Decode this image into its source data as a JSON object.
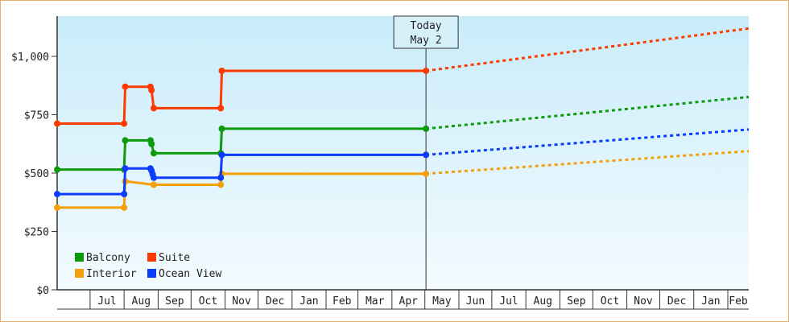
{
  "chart_data": {
    "type": "line",
    "title": "",
    "xlabel": "",
    "ylabel": "",
    "y_ticks": [
      "$0",
      "$250",
      "$500",
      "$750",
      "$1,000"
    ],
    "ylim": [
      0,
      1250
    ],
    "x_tick_labels": [
      "Jul",
      "Aug",
      "Sep",
      "Oct",
      "Nov",
      "Dec",
      "Jan",
      "Feb",
      "Mar",
      "Apr",
      "May",
      "Jun",
      "Jul",
      "Aug",
      "Sep",
      "Oct",
      "Nov",
      "Dec",
      "Jan",
      "Feb"
    ],
    "grid": false,
    "legend_position": "bottom-left",
    "today_marker": {
      "line1": "Today",
      "line2": "May 2"
    },
    "series": [
      {
        "name": "Balcony",
        "color": "#0d9a0d",
        "points": [
          [
            "2023-06-01",
            515
          ],
          [
            "2023-08-01",
            515
          ],
          [
            "2023-08-02",
            640
          ],
          [
            "2023-08-25",
            640
          ],
          [
            "2023-08-26",
            625
          ],
          [
            "2023-08-28",
            585
          ],
          [
            "2023-10-28",
            585
          ],
          [
            "2023-10-29",
            690
          ],
          [
            "2024-05-02",
            690
          ]
        ],
        "forecast": [
          [
            "2024-05-02",
            690
          ],
          [
            "2025-03-01",
            830
          ]
        ]
      },
      {
        "name": "Suite",
        "color": "#ff3a00",
        "points": [
          [
            "2023-06-01",
            712
          ],
          [
            "2023-08-01",
            712
          ],
          [
            "2023-08-02",
            870
          ],
          [
            "2023-08-25",
            870
          ],
          [
            "2023-08-26",
            855
          ],
          [
            "2023-08-28",
            778
          ],
          [
            "2023-10-28",
            778
          ],
          [
            "2023-10-29",
            938
          ],
          [
            "2024-05-02",
            938
          ]
        ],
        "forecast": [
          [
            "2024-05-02",
            938
          ],
          [
            "2025-03-01",
            1125
          ]
        ]
      },
      {
        "name": "Interior",
        "color": "#f5a00a",
        "points": [
          [
            "2023-06-01",
            352
          ],
          [
            "2023-08-01",
            352
          ],
          [
            "2023-08-02",
            465
          ],
          [
            "2023-08-28",
            450
          ],
          [
            "2023-10-28",
            450
          ],
          [
            "2023-10-29",
            497
          ],
          [
            "2024-05-02",
            497
          ]
        ],
        "forecast": [
          [
            "2024-05-02",
            497
          ],
          [
            "2025-03-01",
            597
          ]
        ]
      },
      {
        "name": "Ocean View",
        "color": "#0a3dff",
        "points": [
          [
            "2023-06-01",
            410
          ],
          [
            "2023-08-01",
            410
          ],
          [
            "2023-08-02",
            520
          ],
          [
            "2023-08-25",
            520
          ],
          [
            "2023-08-26",
            510
          ],
          [
            "2023-08-27",
            495
          ],
          [
            "2023-08-28",
            480
          ],
          [
            "2023-10-28",
            480
          ],
          [
            "2023-10-29",
            578
          ],
          [
            "2024-05-02",
            578
          ]
        ],
        "forecast": [
          [
            "2024-05-02",
            578
          ],
          [
            "2025-03-01",
            690
          ]
        ]
      }
    ]
  }
}
